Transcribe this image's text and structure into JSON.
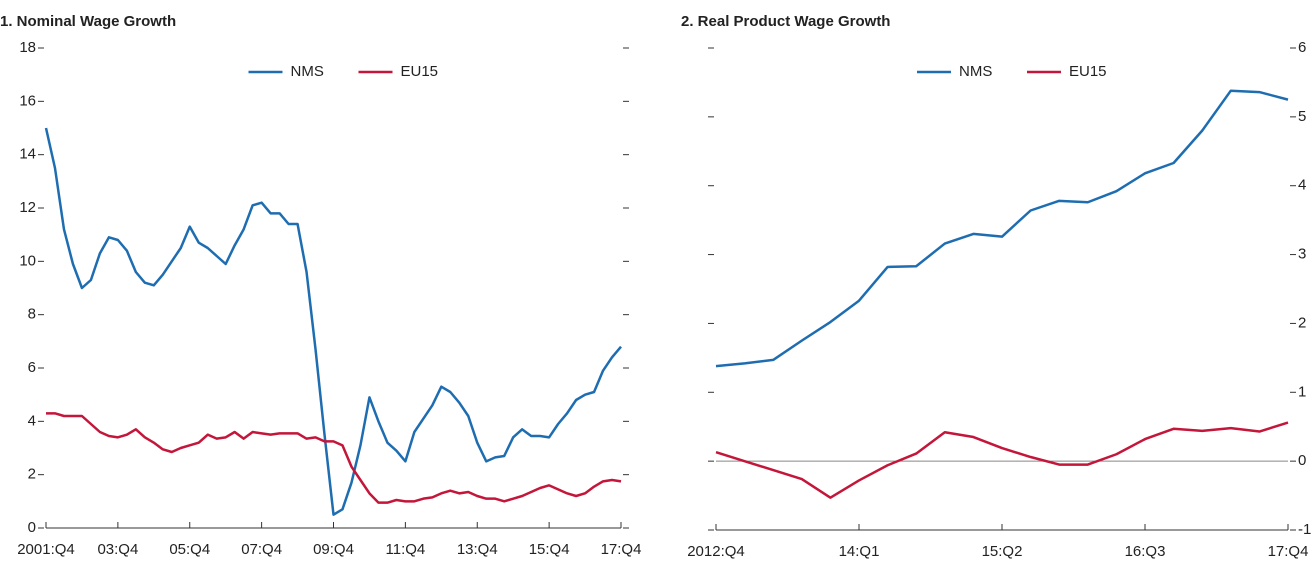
{
  "chart_data": [
    {
      "type": "line",
      "title": "1. Nominal Wage Growth",
      "categories": [
        "2001:Q4",
        null,
        null,
        null,
        null,
        null,
        null,
        null,
        "03:Q4",
        null,
        null,
        null,
        null,
        null,
        null,
        null,
        "05:Q4",
        null,
        null,
        null,
        null,
        null,
        null,
        null,
        "07:Q4",
        null,
        null,
        null,
        null,
        null,
        null,
        null,
        "09:Q4",
        null,
        null,
        null,
        null,
        null,
        null,
        null,
        "11:Q4",
        null,
        null,
        null,
        null,
        null,
        null,
        null,
        "13:Q4",
        null,
        null,
        null,
        null,
        null,
        null,
        null,
        "15:Q4",
        null,
        null,
        null,
        null,
        null,
        null,
        null,
        "17:Q4"
      ],
      "series": [
        {
          "name": "NMS",
          "color": "#1f6db1",
          "values": [
            15.0,
            13.5,
            11.2,
            9.9,
            9.0,
            9.3,
            10.3,
            10.9,
            10.8,
            10.4,
            9.6,
            9.2,
            9.1,
            9.5,
            10.0,
            10.5,
            11.3,
            10.7,
            10.5,
            10.2,
            9.9,
            10.6,
            11.2,
            12.1,
            12.2,
            11.8,
            11.8,
            11.4,
            11.4,
            9.6,
            6.7,
            3.5,
            0.5,
            0.7,
            1.7,
            3.1,
            4.9,
            4.0,
            3.2,
            2.9,
            2.5,
            3.6,
            4.1,
            4.6,
            5.3,
            5.1,
            4.7,
            4.2,
            3.2,
            2.5,
            2.65,
            2.7,
            3.4,
            3.7,
            3.45,
            3.45,
            3.4,
            3.9,
            4.3,
            4.8,
            5.0,
            5.1,
            5.9,
            6.4,
            6.8
          ]
        },
        {
          "name": "EU15",
          "color": "#c3163a",
          "values": [
            4.3,
            4.3,
            4.2,
            4.2,
            4.2,
            3.9,
            3.6,
            3.45,
            3.4,
            3.5,
            3.7,
            3.4,
            3.2,
            2.95,
            2.85,
            3.0,
            3.1,
            3.2,
            3.5,
            3.35,
            3.4,
            3.6,
            3.35,
            3.6,
            3.55,
            3.5,
            3.55,
            3.55,
            3.55,
            3.35,
            3.4,
            3.25,
            3.25,
            3.1,
            2.3,
            1.8,
            1.3,
            0.95,
            0.95,
            1.05,
            1.0,
            1.0,
            1.1,
            1.15,
            1.3,
            1.4,
            1.3,
            1.35,
            1.2,
            1.1,
            1.1,
            1.0,
            1.1,
            1.2,
            1.35,
            1.5,
            1.6,
            1.45,
            1.3,
            1.2,
            1.3,
            1.55,
            1.75,
            1.8,
            1.75
          ]
        }
      ],
      "ylim": [
        0,
        18
      ],
      "yticks": [
        0,
        2,
        4,
        6,
        8,
        10,
        12,
        14,
        16,
        18
      ],
      "ytick_labels_side": "left",
      "legend": "top",
      "zero_line": false
    },
    {
      "type": "line",
      "title": "2. Real Product Wage Growth",
      "categories": [
        "2012:Q4",
        null,
        null,
        null,
        null,
        "14:Q1",
        null,
        null,
        null,
        null,
        "15:Q2",
        null,
        null,
        null,
        null,
        "16:Q3",
        null,
        null,
        null,
        null,
        "17:Q4"
      ],
      "series": [
        {
          "name": "NMS",
          "color": "#1f6db1",
          "values": [
            1.38,
            1.42,
            1.47,
            1.75,
            2.02,
            2.33,
            2.82,
            2.83,
            3.16,
            3.3,
            3.26,
            3.64,
            3.78,
            3.76,
            3.92,
            4.18,
            4.33,
            4.8,
            5.38,
            5.36,
            5.25
          ]
        },
        {
          "name": "EU15",
          "color": "#c3163a",
          "values": [
            0.13,
            0.0,
            -0.13,
            -0.26,
            -0.53,
            -0.28,
            -0.06,
            0.11,
            0.42,
            0.35,
            0.19,
            0.06,
            -0.05,
            -0.05,
            0.1,
            0.32,
            0.47,
            0.44,
            0.48,
            0.43,
            0.56
          ]
        }
      ],
      "ylim": [
        -1,
        6
      ],
      "yticks": [
        -1,
        0,
        1,
        2,
        3,
        4,
        5,
        6
      ],
      "ytick_labels_side": "right",
      "legend": "top",
      "zero_line": true
    }
  ]
}
